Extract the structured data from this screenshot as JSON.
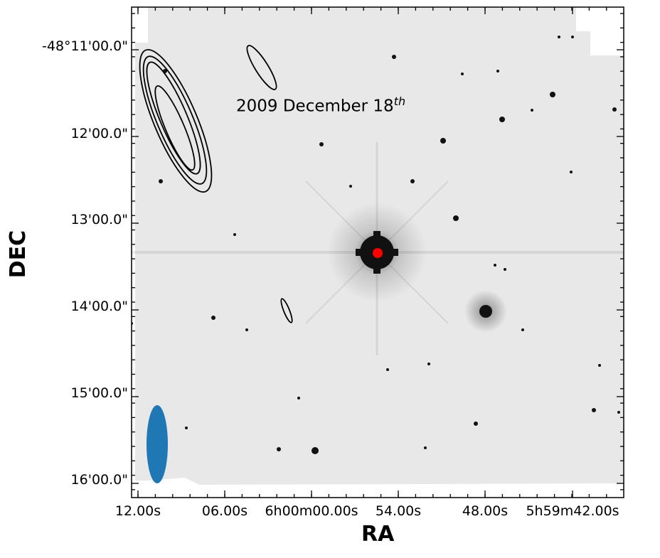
{
  "annotation": {
    "text": "2009 December 18",
    "superscript": "th"
  },
  "axes": {
    "xlabel": "RA",
    "ylabel": "DEC",
    "x_ticks": [
      "12.00s",
      "06.00s",
      "6h00m00.00s",
      "54.00s",
      "48.00s",
      "5h59m42.00s"
    ],
    "y_ticks": [
      "-48°11'00.0\"",
      "12'00.0\"",
      "13'00.0\"",
      "14'00.0\"",
      "15'00.0\"",
      "16'00.0\""
    ]
  },
  "colors": {
    "background": "#e7e7e7",
    "contour": "#000000",
    "source_marker": "#ff0000",
    "beam": "#1f77b4"
  },
  "elements": {
    "bright_star": "bright-star",
    "source_marker": "source-position-marker",
    "beam": "synthesized-beam-ellipse"
  }
}
